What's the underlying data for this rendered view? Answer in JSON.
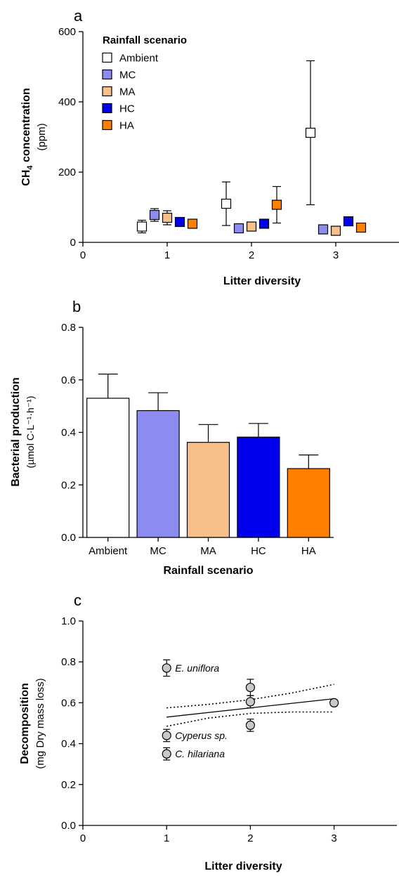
{
  "panels": {
    "a": {
      "letter": "a"
    },
    "b": {
      "letter": "b"
    },
    "c": {
      "letter": "c"
    }
  },
  "chart_data": [
    {
      "id": "a",
      "type": "scatter",
      "ylabel_main": "CH",
      "ylabel_sub": "4",
      "ylabel_rest": " concentration",
      "ylabel_unit": "(ppm)",
      "xlabel": "Litter diversity",
      "xlim": [
        0,
        3.75
      ],
      "ylim": [
        0,
        600
      ],
      "xticks": [
        "0",
        "1",
        "2",
        "3"
      ],
      "yticks": [
        "0",
        "200",
        "400",
        "600"
      ],
      "legend": {
        "title": "Rainfall scenario",
        "placement": "top-left"
      },
      "series": [
        {
          "name": "Ambient",
          "color": "#ffffff",
          "points": [
            {
              "x": 0.7,
              "y": 45,
              "err": 18
            },
            {
              "x": 1.7,
              "y": 110,
              "err": 62
            },
            {
              "x": 2.7,
              "y": 312,
              "err": 205
            }
          ]
        },
        {
          "name": "MC",
          "color": "#8c8cf0",
          "points": [
            {
              "x": 0.85,
              "y": 78,
              "err": 18
            },
            {
              "x": 1.85,
              "y": 40,
              "err": 0
            },
            {
              "x": 2.85,
              "y": 37,
              "err": 0
            }
          ]
        },
        {
          "name": "MA",
          "color": "#f7c08a",
          "points": [
            {
              "x": 1.0,
              "y": 70,
              "err": 20
            },
            {
              "x": 2.0,
              "y": 45,
              "err": 0
            },
            {
              "x": 3.0,
              "y": 33,
              "err": 0
            }
          ]
        },
        {
          "name": "HC",
          "color": "#0000ee",
          "points": [
            {
              "x": 1.15,
              "y": 58,
              "err": 0
            },
            {
              "x": 2.15,
              "y": 53,
              "err": 0
            },
            {
              "x": 3.15,
              "y": 60,
              "err": 12
            }
          ]
        },
        {
          "name": "HA",
          "color": "#ff7f00",
          "points": [
            {
              "x": 1.3,
              "y": 53,
              "err": 0
            },
            {
              "x": 2.3,
              "y": 107,
              "err": 52
            },
            {
              "x": 3.3,
              "y": 42,
              "err": 0
            }
          ]
        }
      ]
    },
    {
      "id": "b",
      "type": "bar",
      "ylabel": "Bacterial production",
      "ylabel_unit": "(µmol C·L⁻¹·h⁻¹)",
      "xlabel": "Rainfall scenario",
      "ylim": [
        0,
        0.8
      ],
      "yticks": [
        "0.0",
        "0.2",
        "0.4",
        "0.6",
        "0.8"
      ],
      "categories": [
        "Ambient",
        "MC",
        "MA",
        "HC",
        "HA"
      ],
      "values": [
        0.53,
        0.483,
        0.362,
        0.382,
        0.262
      ],
      "errors": [
        0.092,
        0.068,
        0.068,
        0.052,
        0.052
      ],
      "colors": [
        "#ffffff",
        "#8c8cf0",
        "#f7c08a",
        "#0000ee",
        "#ff7f00"
      ]
    },
    {
      "id": "c",
      "type": "scatter",
      "ylabel": "Decomposition",
      "ylabel_unit": "(mg Dry mass loss)",
      "xlabel": "Litter diversity",
      "xlim": [
        0,
        3.75
      ],
      "ylim": [
        0,
        1.0
      ],
      "xticks": [
        "0",
        "1",
        "2",
        "3"
      ],
      "yticks": [
        "0.0",
        "0.2",
        "0.4",
        "0.6",
        "0.8",
        "1.0"
      ],
      "points": [
        {
          "x": 1,
          "y": 0.77,
          "err": 0.04,
          "label": "E. uniflora"
        },
        {
          "x": 1,
          "y": 0.44,
          "err": 0.03,
          "label": "Cyperus sp."
        },
        {
          "x": 1,
          "y": 0.35,
          "err": 0.03,
          "label": "C. hilariana"
        },
        {
          "x": 2,
          "y": 0.675,
          "err": 0.04,
          "label": ""
        },
        {
          "x": 2,
          "y": 0.605,
          "err": 0.03,
          "label": ""
        },
        {
          "x": 2,
          "y": 0.49,
          "err": 0.03,
          "label": ""
        },
        {
          "x": 3,
          "y": 0.6,
          "err": 0.015,
          "label": ""
        }
      ],
      "fit": {
        "x": [
          1,
          3
        ],
        "y": [
          0.53,
          0.62
        ]
      },
      "ci_upper": {
        "x": [
          1,
          1.5,
          2,
          2.5,
          3
        ],
        "y": [
          0.575,
          0.592,
          0.615,
          0.648,
          0.69
        ]
      },
      "ci_lower": {
        "x": [
          1,
          1.5,
          2,
          2.5,
          3
        ],
        "y": [
          0.485,
          0.525,
          0.548,
          0.555,
          0.555
        ]
      },
      "point_color": "#c8c8c8"
    }
  ]
}
